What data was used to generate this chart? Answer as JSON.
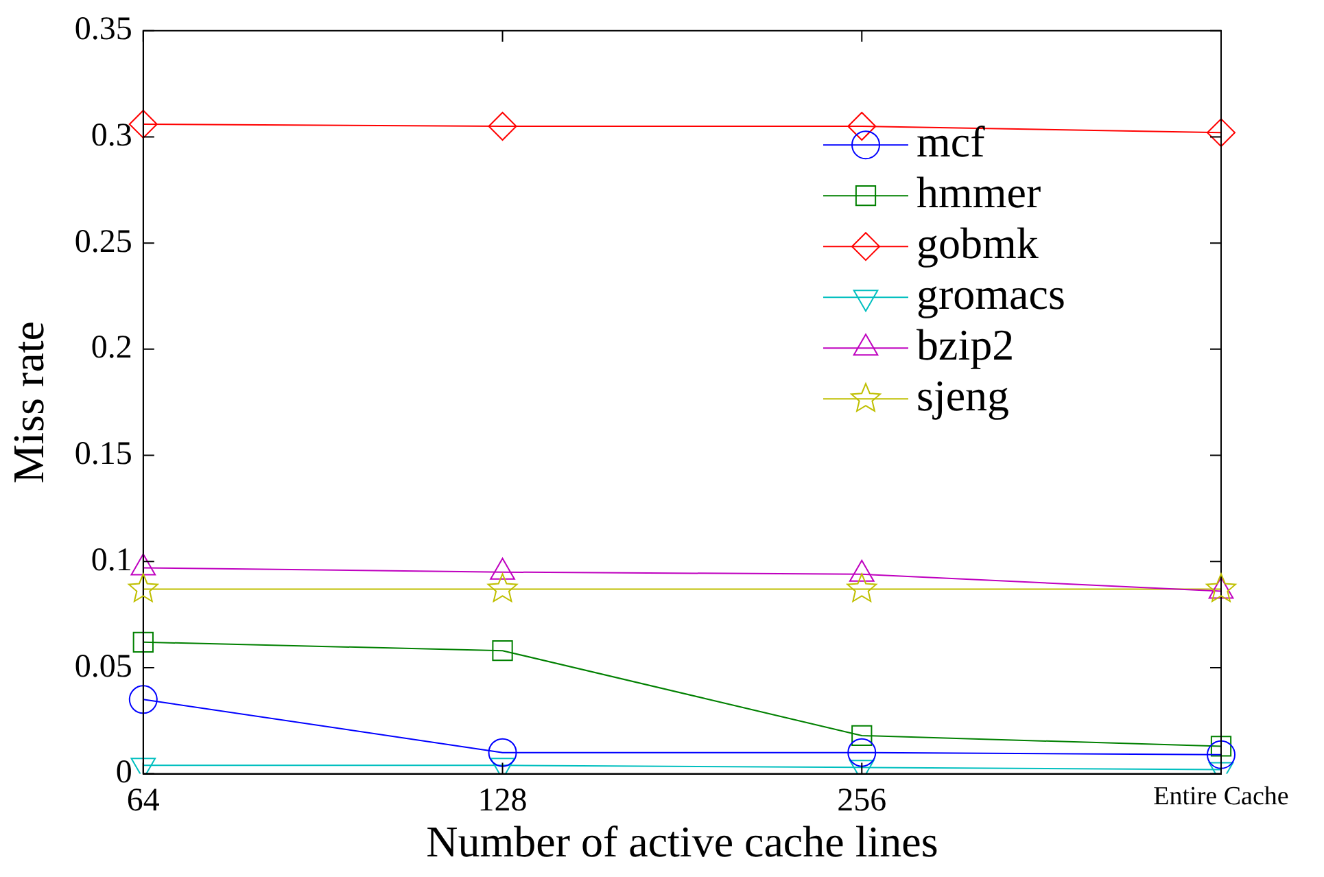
{
  "chart_data": {
    "type": "line",
    "xlabel": "Number of active cache lines",
    "ylabel": "Miss rate",
    "categories": [
      "64",
      "128",
      "256",
      "Entire Cache"
    ],
    "ylim": [
      0,
      0.35
    ],
    "yticks": [
      0,
      0.05,
      0.1,
      0.15,
      0.2,
      0.25,
      0.3,
      0.35
    ],
    "grid": false,
    "legend": "right",
    "series": [
      {
        "name": "mcf",
        "color": "#0000ff",
        "marker": "circle",
        "values": [
          0.035,
          0.01,
          0.01,
          0.009
        ]
      },
      {
        "name": "hmmer",
        "color": "#008000",
        "marker": "square",
        "values": [
          0.062,
          0.058,
          0.018,
          0.013
        ]
      },
      {
        "name": "gobmk",
        "color": "#ff0000",
        "marker": "diamond",
        "values": [
          0.306,
          0.305,
          0.305,
          0.302
        ]
      },
      {
        "name": "gromacs",
        "color": "#00bfbf",
        "marker": "triangle-down",
        "values": [
          0.004,
          0.004,
          0.003,
          0.002
        ]
      },
      {
        "name": "bzip2",
        "color": "#bf00bf",
        "marker": "triangle",
        "values": [
          0.097,
          0.095,
          0.094,
          0.086
        ]
      },
      {
        "name": "sjeng",
        "color": "#bfbf00",
        "marker": "star",
        "values": [
          0.087,
          0.087,
          0.087,
          0.087
        ]
      }
    ]
  }
}
